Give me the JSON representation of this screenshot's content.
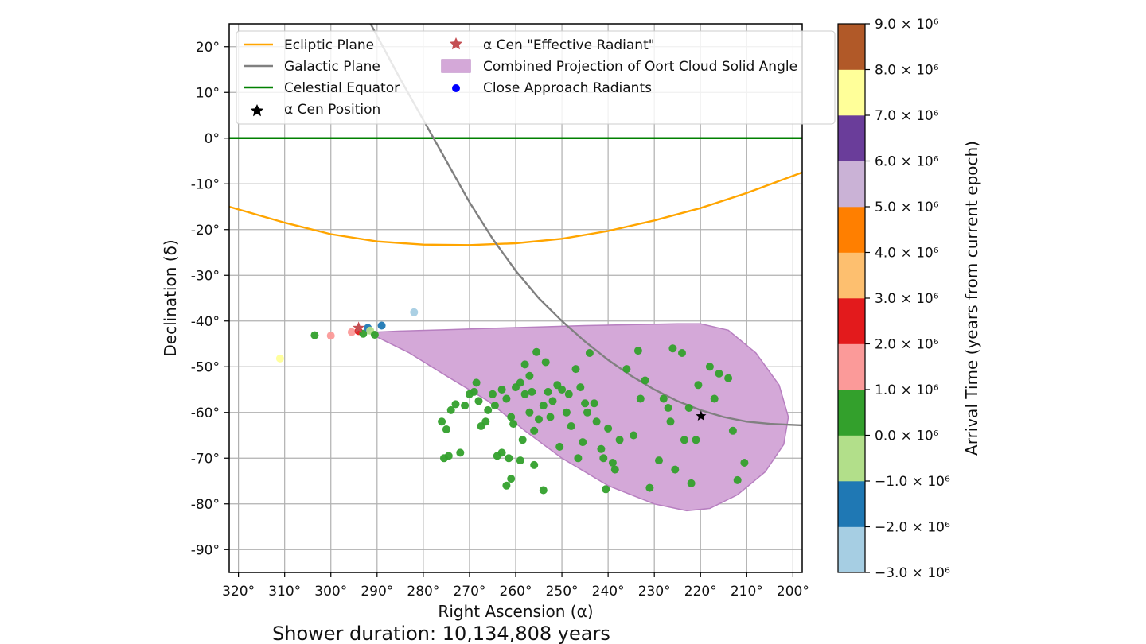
{
  "chart_data": {
    "type": "scatter",
    "xlabel": "Right Ascension (α)",
    "ylabel": "Declination (δ)",
    "xlim": [
      322,
      198
    ],
    "ylim": [
      -95,
      25
    ],
    "x_ticks": [
      320,
      310,
      300,
      290,
      280,
      270,
      260,
      250,
      240,
      230,
      220,
      210,
      200
    ],
    "x_tick_labels": [
      "320°",
      "310°",
      "300°",
      "290°",
      "280°",
      "270°",
      "260°",
      "250°",
      "240°",
      "230°",
      "220°",
      "210°",
      "200°"
    ],
    "y_ticks": [
      20,
      10,
      0,
      -10,
      -20,
      -30,
      -40,
      -50,
      -60,
      -70,
      -80,
      -90
    ],
    "y_tick_labels": [
      "20°",
      "10°",
      "0°",
      "-10°",
      "-20°",
      "-30°",
      "-40°",
      "-50°",
      "-60°",
      "-70°",
      "-80°",
      "-90°"
    ],
    "grid": true,
    "legend_position": "top",
    "legend": {
      "ecliptic": "Ecliptic Plane",
      "galactic": "Galactic Plane",
      "equator": "Celestial Equator",
      "acen_pos": "α Cen Position",
      "acen_rad": "α Cen \"Effective Radiant\"",
      "oort": "Combined Projection of Oort Cloud Solid Angle",
      "close": "Close Approach Radiants"
    },
    "colors": {
      "ecliptic": "#ffa500",
      "galactic": "#808080",
      "equator": "#008000",
      "oort_fill": "#d4a8d8",
      "oort_edge": "#b77fc0",
      "close_legend": "#0000ff",
      "radiant_star": "#c44e52"
    },
    "lines": {
      "ecliptic": [
        [
          322,
          -15
        ],
        [
          310,
          -18.5
        ],
        [
          300,
          -21
        ],
        [
          290,
          -22.6
        ],
        [
          280,
          -23.3
        ],
        [
          270,
          -23.4
        ],
        [
          260,
          -23
        ],
        [
          250,
          -22
        ],
        [
          240,
          -20.3
        ],
        [
          230,
          -18
        ],
        [
          220,
          -15.3
        ],
        [
          210,
          -12
        ],
        [
          198,
          -7.5
        ]
      ],
      "galactic": [
        [
          293,
          28
        ],
        [
          285,
          13
        ],
        [
          280,
          4
        ],
        [
          275,
          -5
        ],
        [
          270,
          -14
        ],
        [
          265,
          -22
        ],
        [
          260,
          -29
        ],
        [
          255,
          -35
        ],
        [
          250,
          -40
        ],
        [
          245,
          -44.5
        ],
        [
          240,
          -48.5
        ],
        [
          235,
          -52
        ],
        [
          230,
          -55
        ],
        [
          225,
          -57.5
        ],
        [
          220,
          -59.5
        ],
        [
          215,
          -61
        ],
        [
          210,
          -62
        ],
        [
          205,
          -62.5
        ],
        [
          198,
          -62.8
        ]
      ]
    },
    "oort_region": [
      [
        292,
        -42.5
      ],
      [
        285,
        -42.2
      ],
      [
        275,
        -41.9
      ],
      [
        265,
        -41.6
      ],
      [
        255,
        -41.3
      ],
      [
        245,
        -41
      ],
      [
        235,
        -40.8
      ],
      [
        225,
        -40.6
      ],
      [
        220,
        -40.6
      ],
      [
        214,
        -42
      ],
      [
        208,
        -47
      ],
      [
        203,
        -54
      ],
      [
        201,
        -61
      ],
      [
        202,
        -67
      ],
      [
        206,
        -73
      ],
      [
        212,
        -78
      ],
      [
        218,
        -81
      ],
      [
        223,
        -81.5
      ],
      [
        230,
        -80
      ],
      [
        240,
        -76
      ],
      [
        250,
        -70
      ],
      [
        258,
        -64
      ],
      [
        266,
        -57.5
      ],
      [
        275,
        -52
      ],
      [
        283,
        -47
      ],
      [
        289,
        -44
      ],
      [
        292,
        -42.5
      ]
    ],
    "acen_position": {
      "x": 219.9,
      "y": -60.8
    },
    "acen_radiant": {
      "x": 294,
      "y": -41.5
    },
    "colorbar": {
      "label": "Arrival Time (years from current epoch)",
      "min": -3000000.0,
      "max": 9000000.0,
      "tick_labels": [
        "−3.0 × 10⁶",
        "−2.0 × 10⁶",
        "−1.0 × 10⁶",
        "0.0 × 10⁶",
        "1.0 × 10⁶",
        "2.0 × 10⁶",
        "3.0 × 10⁶",
        "4.0 × 10⁶",
        "5.0 × 10⁶",
        "6.0 × 10⁶",
        "7.0 × 10⁶",
        "8.0 × 10⁶",
        "9.0 × 10⁶"
      ],
      "colors": [
        "#a6cee3",
        "#1f78b4",
        "#b2df8a",
        "#33a02c",
        "#fb9a99",
        "#e31a1c",
        "#fdbf6f",
        "#ff7f00",
        "#cab2d6",
        "#6a3d9a",
        "#ffff99",
        "#b15928"
      ]
    },
    "points": [
      {
        "x": 311,
        "y": -48.2,
        "t": 7500000.0
      },
      {
        "x": 303.5,
        "y": -43.1,
        "t": 500000.0
      },
      {
        "x": 300,
        "y": -43.2,
        "t": 1500000.0
      },
      {
        "x": 295.5,
        "y": -42.4,
        "t": 1500000.0
      },
      {
        "x": 294,
        "y": -42.2,
        "t": 2500000.0
      },
      {
        "x": 293,
        "y": -42.8,
        "t": 500000.0
      },
      {
        "x": 292,
        "y": -41.5,
        "t": -1500000.0
      },
      {
        "x": 291.5,
        "y": -42.1,
        "t": -500000.0
      },
      {
        "x": 290.5,
        "y": -43.0,
        "t": 500000.0
      },
      {
        "x": 289,
        "y": -41.0,
        "t": -1500000.0
      },
      {
        "x": 282,
        "y": -38.1,
        "t": -2500000.0
      },
      {
        "x": 276,
        "y": -62,
        "t": 500000.0
      },
      {
        "x": 275,
        "y": -63.7,
        "t": 500000.0
      },
      {
        "x": 275.5,
        "y": -70,
        "t": 500000.0
      },
      {
        "x": 274.5,
        "y": -69.5,
        "t": 500000.0
      },
      {
        "x": 274,
        "y": -59.5,
        "t": 500000.0
      },
      {
        "x": 273,
        "y": -58.2,
        "t": 500000.0
      },
      {
        "x": 272,
        "y": -68.8,
        "t": 500000.0
      },
      {
        "x": 271,
        "y": -58.5,
        "t": 500000.0
      },
      {
        "x": 269,
        "y": -55.5,
        "t": 500000.0
      },
      {
        "x": 268.5,
        "y": -53.5,
        "t": 500000.0
      },
      {
        "x": 267.5,
        "y": -63,
        "t": 500000.0
      },
      {
        "x": 266.5,
        "y": -62,
        "t": 500000.0
      },
      {
        "x": 264,
        "y": -69.5,
        "t": 500000.0
      },
      {
        "x": 263,
        "y": -68.8,
        "t": 500000.0
      },
      {
        "x": 262,
        "y": -76,
        "t": 500000.0
      },
      {
        "x": 261,
        "y": -74.5,
        "t": 500000.0
      },
      {
        "x": 261.5,
        "y": -70,
        "t": 500000.0
      },
      {
        "x": 259,
        "y": -70.5,
        "t": 500000.0
      },
      {
        "x": 256,
        "y": -71.5,
        "t": 500000.0
      },
      {
        "x": 254,
        "y": -77,
        "t": 500000.0
      },
      {
        "x": 240.5,
        "y": -76.8,
        "t": 500000.0
      },
      {
        "x": 270,
        "y": -56,
        "t": 500000.0
      },
      {
        "x": 268,
        "y": -57.5,
        "t": 500000.0
      },
      {
        "x": 266,
        "y": -59.5,
        "t": 500000.0
      },
      {
        "x": 265,
        "y": -56,
        "t": 500000.0
      },
      {
        "x": 263,
        "y": -55,
        "t": 500000.0
      },
      {
        "x": 262,
        "y": -57,
        "t": 500000.0
      },
      {
        "x": 261,
        "y": -61,
        "t": 500000.0
      },
      {
        "x": 260,
        "y": -54.5,
        "t": 500000.0
      },
      {
        "x": 259,
        "y": -53.5,
        "t": 500000.0
      },
      {
        "x": 258,
        "y": -56,
        "t": 500000.0
      },
      {
        "x": 257,
        "y": -60,
        "t": 500000.0
      },
      {
        "x": 256,
        "y": -64,
        "t": 500000.0
      },
      {
        "x": 258.5,
        "y": -66,
        "t": 500000.0
      },
      {
        "x": 255,
        "y": -61.5,
        "t": 500000.0
      },
      {
        "x": 254,
        "y": -58.5,
        "t": 500000.0
      },
      {
        "x": 253,
        "y": -55.5,
        "t": 500000.0
      },
      {
        "x": 252,
        "y": -57.5,
        "t": 500000.0
      },
      {
        "x": 251,
        "y": -54,
        "t": 500000.0
      },
      {
        "x": 250,
        "y": -55,
        "t": 500000.0
      },
      {
        "x": 249,
        "y": -60,
        "t": 500000.0
      },
      {
        "x": 248,
        "y": -63,
        "t": 500000.0
      },
      {
        "x": 247,
        "y": -50.5,
        "t": 500000.0
      },
      {
        "x": 246,
        "y": -54.5,
        "t": 500000.0
      },
      {
        "x": 245,
        "y": -58,
        "t": 500000.0
      },
      {
        "x": 246.5,
        "y": -70,
        "t": 500000.0
      },
      {
        "x": 245.5,
        "y": -66.5,
        "t": 500000.0
      },
      {
        "x": 243,
        "y": -58,
        "t": 500000.0
      },
      {
        "x": 242.5,
        "y": -62,
        "t": 500000.0
      },
      {
        "x": 241,
        "y": -70,
        "t": 500000.0
      },
      {
        "x": 240,
        "y": -63.5,
        "t": 500000.0
      },
      {
        "x": 239,
        "y": -71,
        "t": 500000.0
      },
      {
        "x": 238.5,
        "y": -72.5,
        "t": 500000.0
      },
      {
        "x": 236,
        "y": -50.5,
        "t": 500000.0
      },
      {
        "x": 234.5,
        "y": -65,
        "t": 500000.0
      },
      {
        "x": 233,
        "y": -57,
        "t": 500000.0
      },
      {
        "x": 233.5,
        "y": -46.5,
        "t": 500000.0
      },
      {
        "x": 232,
        "y": -53,
        "t": 500000.0
      },
      {
        "x": 231,
        "y": -76.5,
        "t": 500000.0
      },
      {
        "x": 229,
        "y": -70.5,
        "t": 500000.0
      },
      {
        "x": 228,
        "y": -57,
        "t": 500000.0
      },
      {
        "x": 227,
        "y": -59,
        "t": 500000.0
      },
      {
        "x": 226,
        "y": -46,
        "t": 500000.0
      },
      {
        "x": 226.5,
        "y": -62,
        "t": 500000.0
      },
      {
        "x": 225.5,
        "y": -72.5,
        "t": 500000.0
      },
      {
        "x": 224,
        "y": -47,
        "t": 500000.0
      },
      {
        "x": 223.5,
        "y": -66,
        "t": 500000.0
      },
      {
        "x": 222.5,
        "y": -59,
        "t": 500000.0
      },
      {
        "x": 222,
        "y": -75.5,
        "t": 500000.0
      },
      {
        "x": 221,
        "y": -66,
        "t": 500000.0
      },
      {
        "x": 220.5,
        "y": -54,
        "t": 500000.0
      },
      {
        "x": 218,
        "y": -50,
        "t": 500000.0
      },
      {
        "x": 217,
        "y": -57,
        "t": 500000.0
      },
      {
        "x": 216,
        "y": -51.5,
        "t": 500000.0
      },
      {
        "x": 214,
        "y": -52.5,
        "t": 500000.0
      },
      {
        "x": 213,
        "y": -64,
        "t": 500000.0
      },
      {
        "x": 212,
        "y": -74.8,
        "t": 500000.0
      },
      {
        "x": 210.5,
        "y": -71,
        "t": 500000.0
      },
      {
        "x": 244,
        "y": -47,
        "t": 500000.0
      },
      {
        "x": 255.5,
        "y": -46.8,
        "t": 500000.0
      },
      {
        "x": 258,
        "y": -49.5,
        "t": 500000.0
      },
      {
        "x": 257,
        "y": -52,
        "t": 500000.0
      },
      {
        "x": 253.5,
        "y": -49,
        "t": 500000.0
      },
      {
        "x": 252.5,
        "y": -61,
        "t": 500000.0
      },
      {
        "x": 250.5,
        "y": -67.5,
        "t": 500000.0
      },
      {
        "x": 244.5,
        "y": -60,
        "t": 500000.0
      },
      {
        "x": 237.5,
        "y": -66,
        "t": 500000.0
      },
      {
        "x": 264.5,
        "y": -58.5,
        "t": 500000.0
      },
      {
        "x": 260.5,
        "y": -62.5,
        "t": 500000.0
      },
      {
        "x": 256.5,
        "y": -55.5,
        "t": 500000.0
      },
      {
        "x": 248.5,
        "y": -56,
        "t": 500000.0
      },
      {
        "x": 241.5,
        "y": -68,
        "t": 500000.0
      }
    ]
  },
  "footer": {
    "duration_text": "Shower duration: 10,134,808 years"
  }
}
